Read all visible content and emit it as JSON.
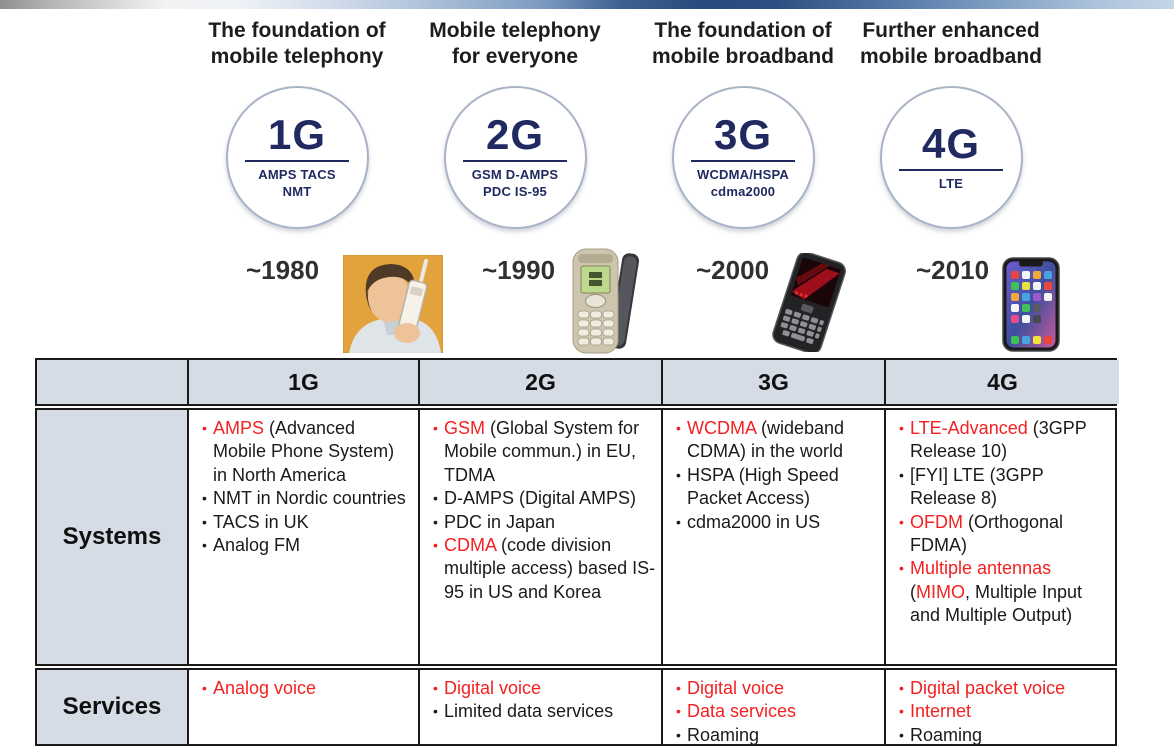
{
  "colors": {
    "accent_red": "#f32121",
    "navy": "#202a60",
    "table_header_bg": "#d6dce6",
    "table_border": "#1a1a1a",
    "topbar_navy": "#274a7c"
  },
  "generations": [
    {
      "title_lines": [
        "The foundation of",
        "mobile telephony"
      ],
      "circle_label": "1G",
      "circle_sub": [
        "AMPS TACS",
        "NMT"
      ],
      "year": "~1980",
      "image": "person-with-brick-phone-photo"
    },
    {
      "title_lines": [
        "Mobile telephony",
        "for everyone"
      ],
      "circle_label": "2G",
      "circle_sub": [
        "GSM D-AMPS",
        "PDC IS-95"
      ],
      "year": "~1990",
      "image": "candybar-feature-phone-photo"
    },
    {
      "title_lines": [
        "The foundation of",
        "mobile broadband"
      ],
      "circle_label": "3G",
      "circle_sub": [
        "WCDMA/HSPA",
        "cdma2000"
      ],
      "year": "~2000",
      "image": "qwerty-smartphone-photo"
    },
    {
      "title_lines": [
        "Further enhanced",
        "mobile broadband"
      ],
      "circle_label": "4G",
      "circle_sub": [
        "LTE"
      ],
      "year": "~2010",
      "image": "modern-smartphone-photo"
    }
  ],
  "table": {
    "header": [
      "",
      "1G",
      "2G",
      "3G",
      "4G"
    ],
    "rows": [
      {
        "label": "Systems",
        "cells": [
          [
            {
              "bullet": "red",
              "segments": [
                {
                  "text": "AMPS",
                  "red": true
                },
                {
                  "text": " (Advanced Mobile Phone System) in North America",
                  "red": false
                }
              ]
            },
            {
              "bullet": "black",
              "segments": [
                {
                  "text": "NMT in Nordic countries",
                  "red": false
                }
              ]
            },
            {
              "bullet": "black",
              "segments": [
                {
                  "text": "TACS in UK",
                  "red": false
                }
              ]
            },
            {
              "bullet": "black",
              "segments": [
                {
                  "text": "Analog FM",
                  "red": false
                }
              ]
            }
          ],
          [
            {
              "bullet": "red",
              "segments": [
                {
                  "text": "GSM",
                  "red": true
                },
                {
                  "text": " (Global System for Mobile commun.) in EU, TDMA",
                  "red": false
                }
              ]
            },
            {
              "bullet": "black",
              "segments": [
                {
                  "text": "D-AMPS (Digital AMPS)",
                  "red": false
                }
              ]
            },
            {
              "bullet": "black",
              "segments": [
                {
                  "text": "PDC in Japan",
                  "red": false
                }
              ]
            },
            {
              "bullet": "red",
              "segments": [
                {
                  "text": "CDMA",
                  "red": true
                },
                {
                  "text": " (code division multiple access) based IS-95 in US and Korea",
                  "red": false
                }
              ]
            }
          ],
          [
            {
              "bullet": "red",
              "segments": [
                {
                  "text": "WCDMA",
                  "red": true
                },
                {
                  "text": " (wideband CDMA) in the world",
                  "red": false
                }
              ]
            },
            {
              "bullet": "black",
              "segments": [
                {
                  "text": "HSPA (High Speed Packet Access)",
                  "red": false
                }
              ]
            },
            {
              "bullet": "black",
              "segments": [
                {
                  "text": "cdma2000 in US",
                  "red": false
                }
              ]
            }
          ],
          [
            {
              "bullet": "red",
              "segments": [
                {
                  "text": "LTE-Advanced",
                  "red": true
                },
                {
                  "text": " (3GPP Release 10)",
                  "red": false
                }
              ]
            },
            {
              "bullet": "black",
              "segments": [
                {
                  "text": "[FYI] LTE (3GPP Release 8)",
                  "red": false
                }
              ]
            },
            {
              "bullet": "red",
              "segments": [
                {
                  "text": "OFDM",
                  "red": true
                },
                {
                  "text": " (Orthogonal FDMA)",
                  "red": false
                }
              ]
            },
            {
              "bullet": "red",
              "segments": [
                {
                  "text": "Multiple antennas",
                  "red": true
                },
                {
                  "text": " (",
                  "red": false
                },
                {
                  "text": "MIMO",
                  "red": true
                },
                {
                  "text": ", Multiple Input and Multiple Output)",
                  "red": false
                }
              ]
            }
          ]
        ]
      },
      {
        "label": "Services",
        "cells": [
          [
            {
              "bullet": "red",
              "segments": [
                {
                  "text": "Analog voice",
                  "red": true
                }
              ]
            }
          ],
          [
            {
              "bullet": "red",
              "segments": [
                {
                  "text": "Digital voice",
                  "red": true
                }
              ]
            },
            {
              "bullet": "black",
              "segments": [
                {
                  "text": "Limited data services",
                  "red": false
                }
              ]
            }
          ],
          [
            {
              "bullet": "red",
              "segments": [
                {
                  "text": "Digital voice",
                  "red": true
                }
              ]
            },
            {
              "bullet": "red",
              "segments": [
                {
                  "text": "Data services",
                  "red": true
                }
              ]
            },
            {
              "bullet": "black",
              "segments": [
                {
                  "text": "Roaming",
                  "red": false
                }
              ]
            }
          ],
          [
            {
              "bullet": "red",
              "segments": [
                {
                  "text": "Digital packet voice",
                  "red": true
                }
              ]
            },
            {
              "bullet": "red",
              "segments": [
                {
                  "text": "Internet",
                  "red": true
                }
              ]
            },
            {
              "bullet": "black",
              "segments": [
                {
                  "text": "Roaming",
                  "red": false
                }
              ]
            }
          ]
        ]
      }
    ]
  }
}
